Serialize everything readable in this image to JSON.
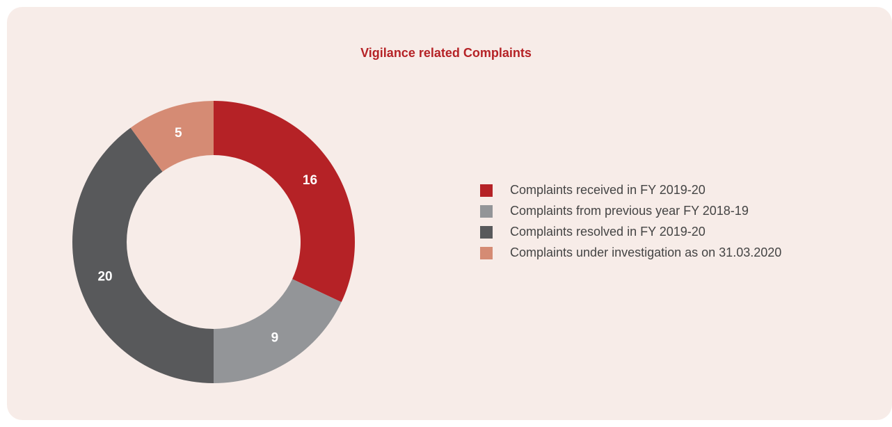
{
  "chart_data": {
    "type": "donut",
    "title": "Vigilance related Complaints",
    "categories": [
      "Complaints received in FY 2019-20",
      "Complaints from previous year FY 2018-19",
      "Complaints resolved in FY 2019-20",
      "Complaints under investigation as on 31.03.2020"
    ],
    "values": [
      16,
      9,
      20,
      5
    ],
    "colors": [
      "#b52226",
      "#939598",
      "#58595b",
      "#d58b74"
    ],
    "legend": "right"
  }
}
